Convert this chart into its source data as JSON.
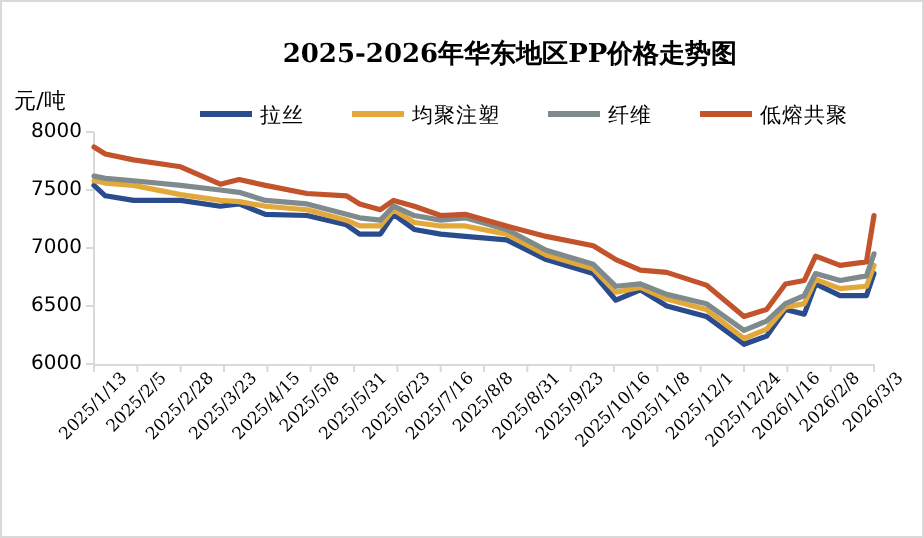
{
  "chart_data": {
    "type": "line",
    "title": "2025-2026年华东地区PP价格走势图",
    "ylabel": "元/吨",
    "legend": "top",
    "grid": false,
    "marker": "none",
    "line_style": "solid",
    "x": [
      "2025-01-13",
      "2025-01-19",
      "2025-02-03",
      "2025-02-28",
      "2025-03-21",
      "2025-03-31",
      "2025-04-14",
      "2025-05-06",
      "2025-05-27",
      "2025-06-03",
      "2025-06-14",
      "2025-06-21",
      "2025-07-02",
      "2025-07-16",
      "2025-07-29",
      "2025-08-20",
      "2025-09-10",
      "2025-10-05",
      "2025-10-17",
      "2025-10-30",
      "2025-11-13",
      "2025-12-04",
      "2025-12-24",
      "2026-01-05",
      "2026-01-15",
      "2026-01-25",
      "2026-01-31",
      "2026-02-13",
      "2026-02-27",
      "2026-03-03"
    ],
    "xlim": [
      "2025-01-13",
      "2026-03-03"
    ],
    "xticks": [
      {
        "value": "2025-01-13",
        "label": "2025/1/13"
      },
      {
        "value": "2025-02-05",
        "label": "2025/2/5"
      },
      {
        "value": "2025-02-28",
        "label": "2025/2/28"
      },
      {
        "value": "2025-03-23",
        "label": "2025/3/23"
      },
      {
        "value": "2025-04-15",
        "label": "2025/4/15"
      },
      {
        "value": "2025-05-08",
        "label": "2025/5/8"
      },
      {
        "value": "2025-05-31",
        "label": "2025/5/31"
      },
      {
        "value": "2025-06-23",
        "label": "2025/6/23"
      },
      {
        "value": "2025-07-16",
        "label": "2025/7/16"
      },
      {
        "value": "2025-08-08",
        "label": "2025/8/8"
      },
      {
        "value": "2025-08-31",
        "label": "2025/8/31"
      },
      {
        "value": "2025-09-23",
        "label": "2025/9/23"
      },
      {
        "value": "2025-10-16",
        "label": "2025/10/16"
      },
      {
        "value": "2025-11-08",
        "label": "2025/11/8"
      },
      {
        "value": "2025-12-01",
        "label": "2025/12/1"
      },
      {
        "value": "2025-12-24",
        "label": "2025/12/24"
      },
      {
        "value": "2026-01-16",
        "label": "2026/1/16"
      },
      {
        "value": "2026-02-08",
        "label": "2026/2/8"
      },
      {
        "value": "2026-03-03",
        "label": "2026/3/3"
      }
    ],
    "ylim": [
      6000,
      8000
    ],
    "yticks": [
      6000,
      6500,
      7000,
      7500,
      8000
    ],
    "series": [
      {
        "name": "拉丝",
        "color": "#2b4c8c",
        "values": [
          7540,
          7450,
          7410,
          7410,
          7360,
          7380,
          7290,
          7280,
          7200,
          7120,
          7120,
          7290,
          7160,
          7120,
          7100,
          7070,
          6900,
          6780,
          6550,
          6640,
          6500,
          6410,
          6170,
          6240,
          6470,
          6430,
          6690,
          6590,
          6590,
          6780
        ]
      },
      {
        "name": "均聚注塑",
        "color": "#e3a83a",
        "values": [
          7580,
          7560,
          7540,
          7460,
          7410,
          7400,
          7360,
          7330,
          7240,
          7190,
          7190,
          7330,
          7220,
          7190,
          7190,
          7120,
          6940,
          6820,
          6620,
          6660,
          6560,
          6470,
          6220,
          6300,
          6490,
          6520,
          6730,
          6650,
          6670,
          6850
        ]
      },
      {
        "name": "纤维",
        "color": "#7f8a8c",
        "values": [
          7620,
          7600,
          7580,
          7540,
          7500,
          7480,
          7410,
          7380,
          7290,
          7260,
          7240,
          7360,
          7280,
          7240,
          7260,
          7160,
          6980,
          6860,
          6670,
          6690,
          6600,
          6520,
          6290,
          6370,
          6520,
          6590,
          6780,
          6720,
          6760,
          6950
        ]
      },
      {
        "name": "低熔共聚",
        "color": "#c2532b",
        "values": [
          7870,
          7810,
          7760,
          7700,
          7550,
          7590,
          7540,
          7470,
          7450,
          7380,
          7330,
          7410,
          7360,
          7280,
          7290,
          7190,
          7100,
          7020,
          6900,
          6810,
          6790,
          6680,
          6410,
          6470,
          6690,
          6720,
          6930,
          6850,
          6880,
          7280
        ]
      }
    ]
  }
}
